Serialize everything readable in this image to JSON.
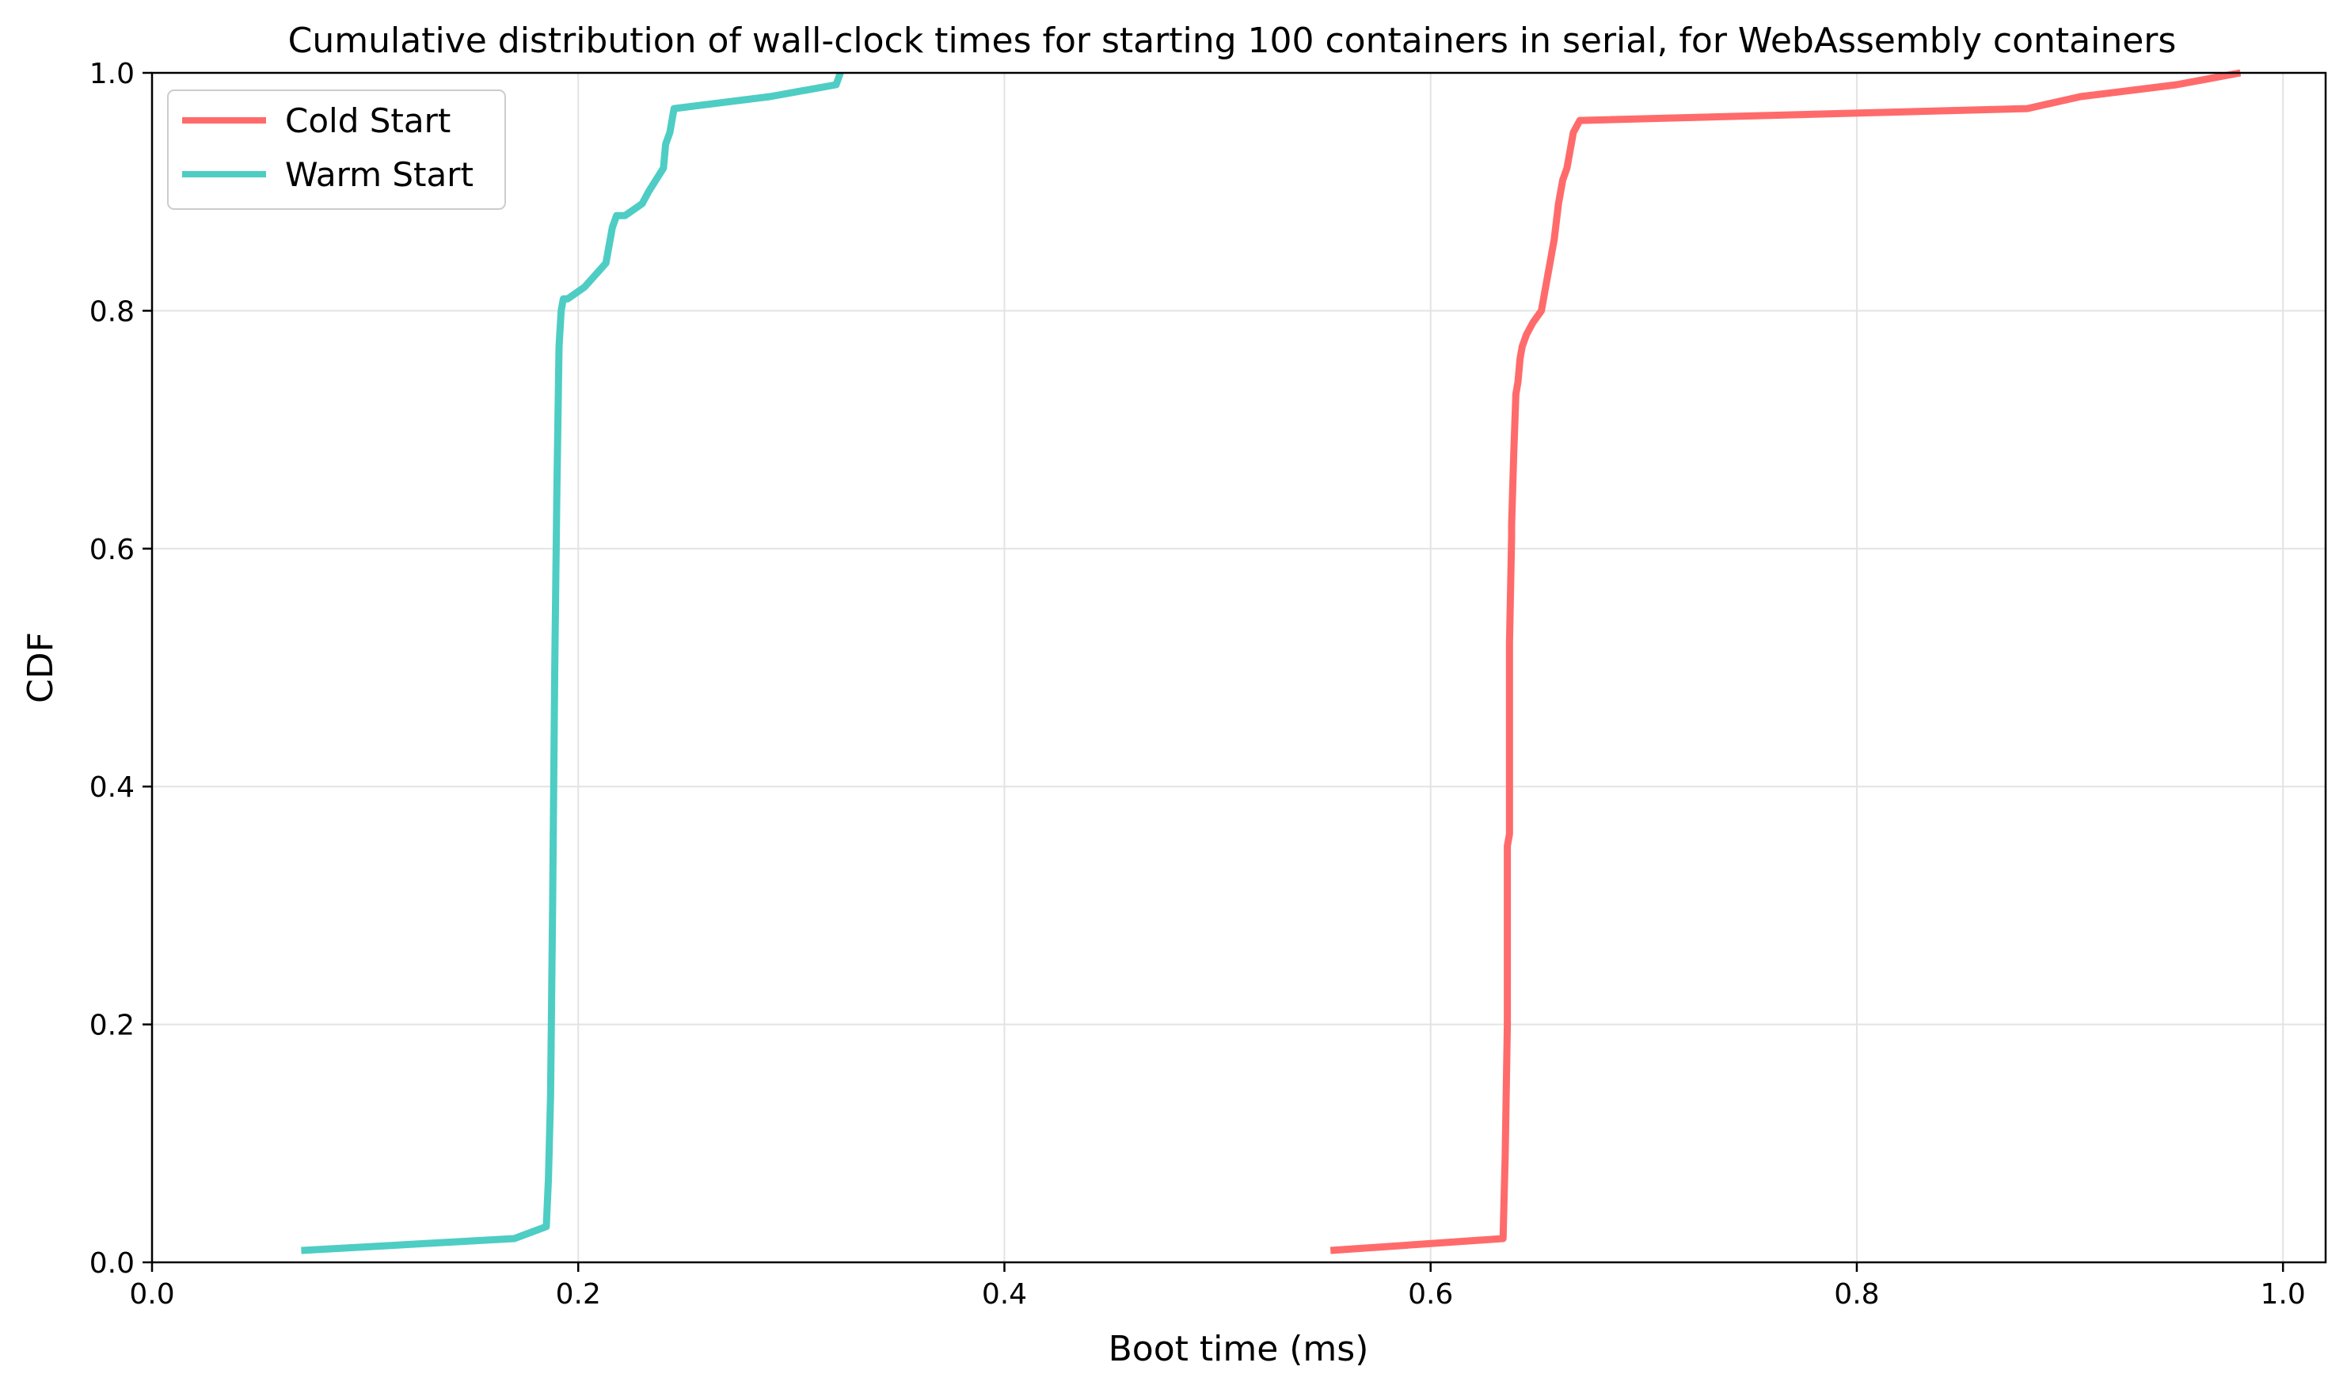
{
  "chart_data": {
    "type": "line",
    "title": "Cumulative distribution of wall-clock times for starting 100 containers in serial, for WebAssembly containers",
    "xlabel": "Boot time (ms)",
    "ylabel": "CDF",
    "xlim": [
      0.0,
      1.02
    ],
    "ylim": [
      0.0,
      1.0
    ],
    "xticks": [
      0.0,
      0.2,
      0.4,
      0.6,
      0.8,
      1.0
    ],
    "xtick_labels": [
      "0.0",
      "0.2",
      "0.4",
      "0.6",
      "0.8",
      "1.0"
    ],
    "yticks": [
      0.0,
      0.2,
      0.4,
      0.6,
      0.8,
      1.0
    ],
    "ytick_labels": [
      "0.0",
      "0.2",
      "0.4",
      "0.6",
      "0.8",
      "1.0"
    ],
    "grid": true,
    "legend_position": "top-left",
    "series": [
      {
        "name": "Cold Start",
        "color": "#ff6b6b",
        "x": [
          0.553,
          0.634,
          0.635,
          0.636,
          0.636,
          0.637,
          0.637,
          0.638,
          0.638,
          0.639,
          0.64,
          0.641,
          0.642,
          0.643,
          0.645,
          0.648,
          0.652,
          0.656,
          0.658,
          0.66,
          0.661,
          0.662,
          0.664,
          0.665,
          0.667,
          0.67,
          0.88,
          0.905,
          0.95,
          0.98
        ],
        "y": [
          0.01,
          0.02,
          0.09,
          0.2,
          0.35,
          0.36,
          0.52,
          0.61,
          0.62,
          0.68,
          0.73,
          0.74,
          0.76,
          0.77,
          0.78,
          0.79,
          0.8,
          0.84,
          0.86,
          0.89,
          0.9,
          0.91,
          0.92,
          0.93,
          0.95,
          0.96,
          0.97,
          0.98,
          0.99,
          1.0
        ]
      },
      {
        "name": "Warm Start",
        "color": "#4ecdc4",
        "x": [
          0.07,
          0.17,
          0.185,
          0.186,
          0.187,
          0.188,
          0.189,
          0.19,
          0.191,
          0.192,
          0.193,
          0.195,
          0.203,
          0.213,
          0.216,
          0.218,
          0.222,
          0.23,
          0.233,
          0.24,
          0.241,
          0.243,
          0.244,
          0.245,
          0.29,
          0.321,
          0.323
        ],
        "y": [
          0.01,
          0.02,
          0.03,
          0.07,
          0.14,
          0.3,
          0.5,
          0.65,
          0.77,
          0.8,
          0.81,
          0.81,
          0.82,
          0.84,
          0.87,
          0.88,
          0.88,
          0.89,
          0.9,
          0.92,
          0.94,
          0.95,
          0.96,
          0.97,
          0.98,
          0.99,
          1.0
        ]
      }
    ]
  }
}
